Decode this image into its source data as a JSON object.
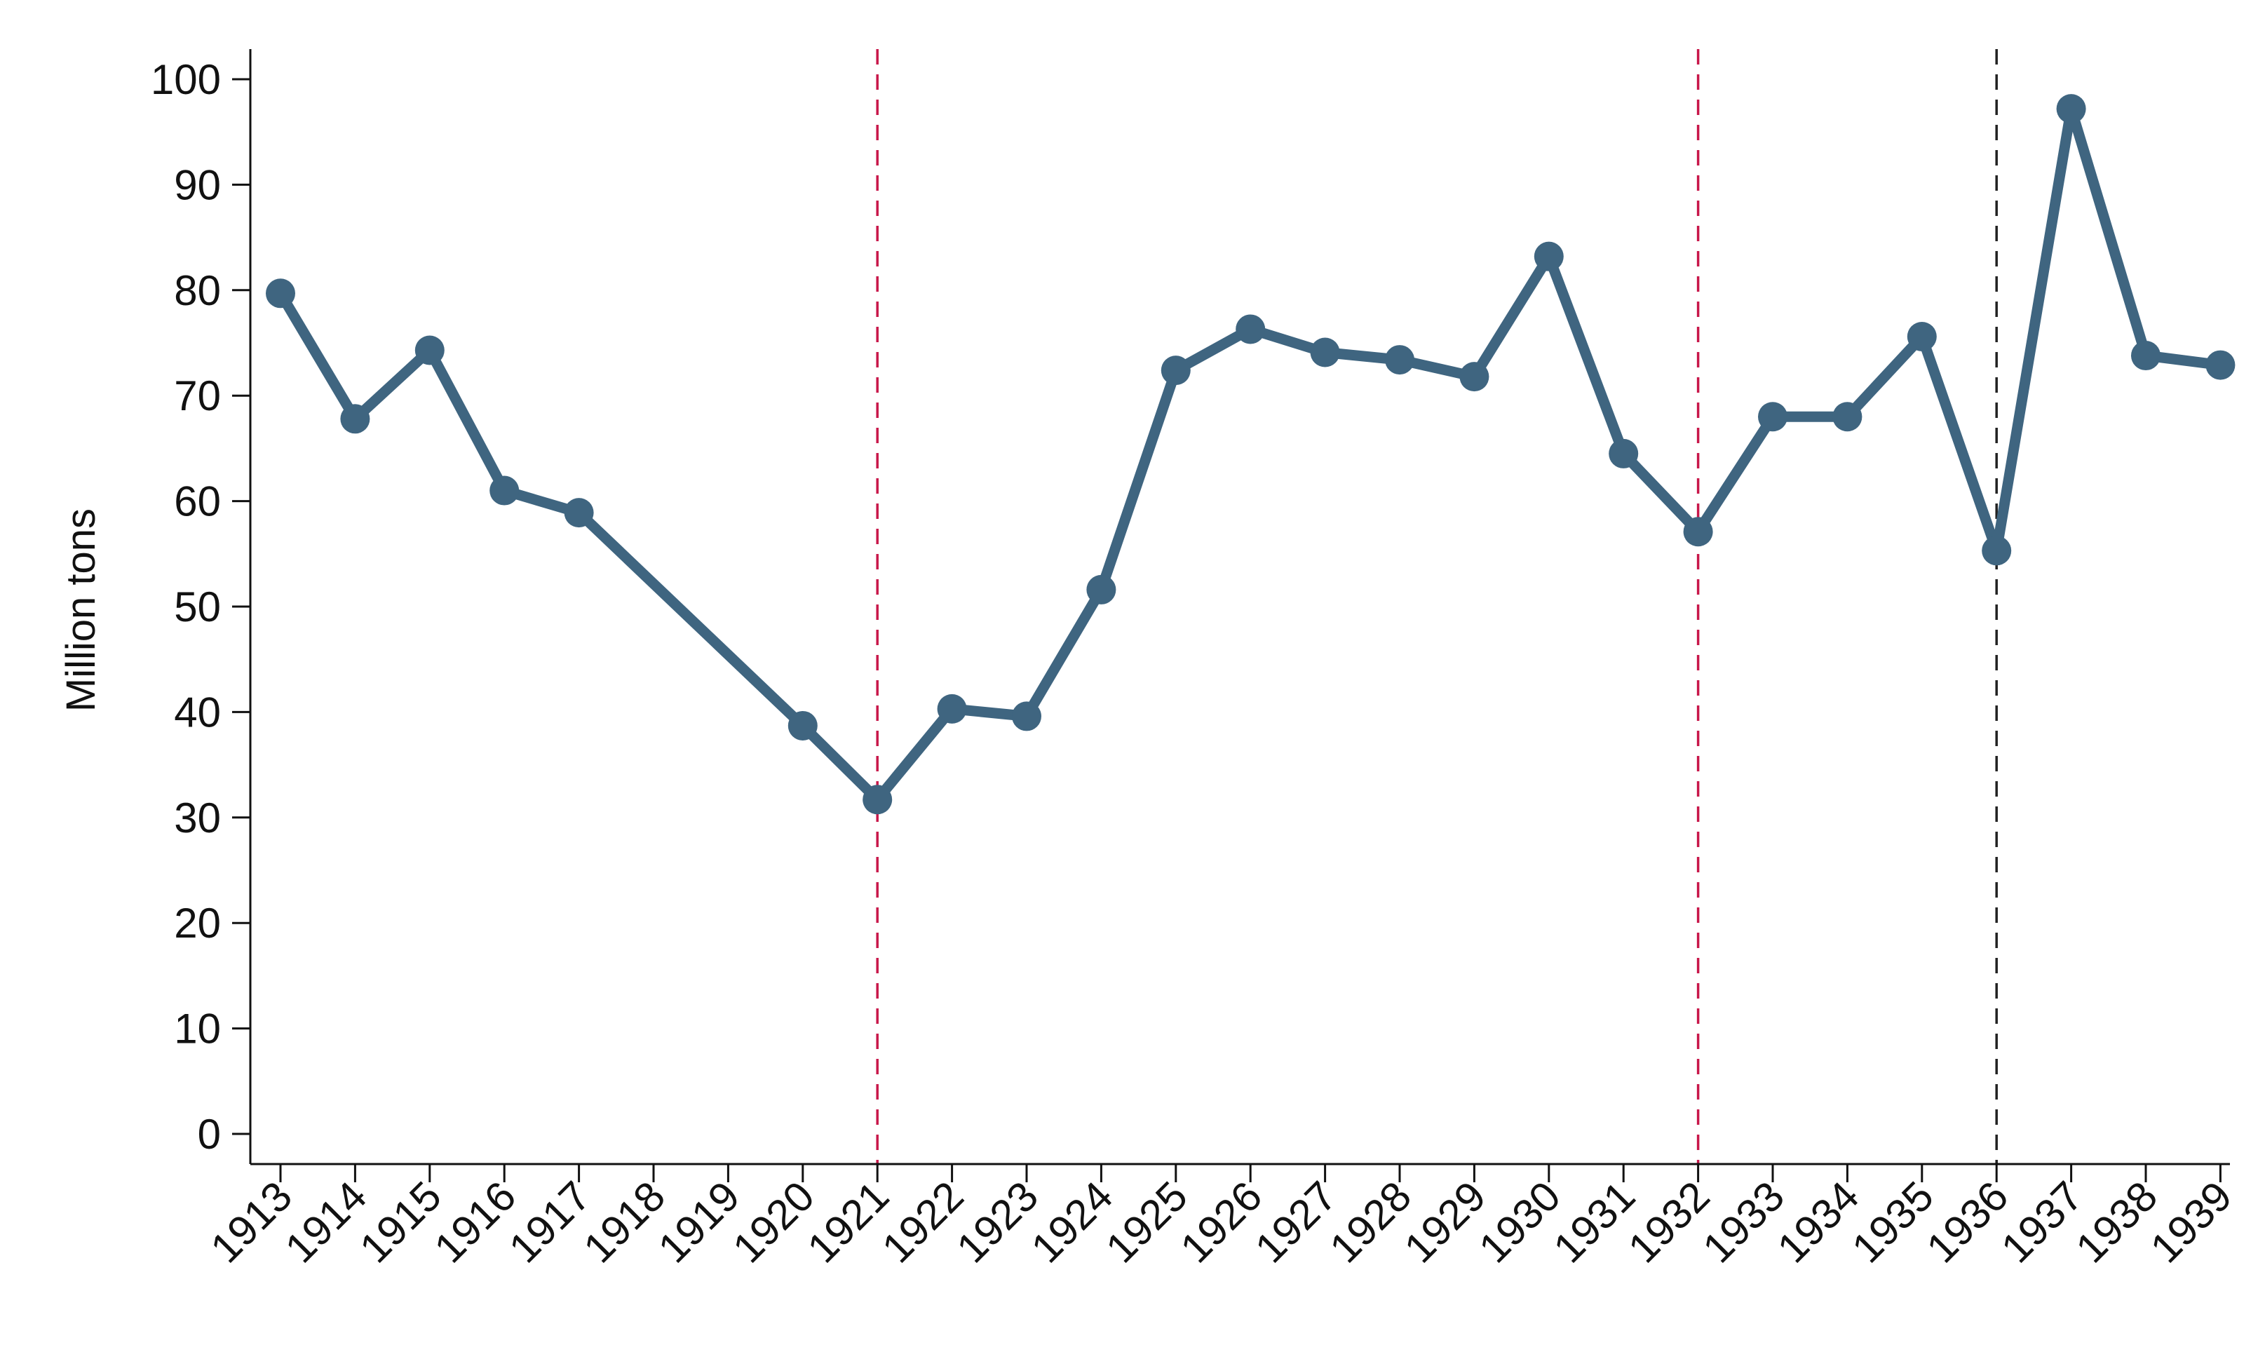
{
  "chart_data": {
    "type": "line",
    "title": "",
    "xlabel": "",
    "ylabel": "Million tons",
    "ylim": [
      0,
      100
    ],
    "yticks": [
      "0",
      "10",
      "20",
      "30",
      "40",
      "50",
      "60",
      "70",
      "80",
      "90",
      "100"
    ],
    "xticks": [
      "1913",
      "1914",
      "1915",
      "1916",
      "1917",
      "1918",
      "1919",
      "1920",
      "1921",
      "1922",
      "1923",
      "1924",
      "1925",
      "1926",
      "1927",
      "1928",
      "1929",
      "1930",
      "1931",
      "1932",
      "1933",
      "1934",
      "1935",
      "1936",
      "1937",
      "1938",
      "1939"
    ],
    "grid": false,
    "legend": "none",
    "series": [
      {
        "color": "#3f6580",
        "points": [
          {
            "x": 1913,
            "y": 79.7
          },
          {
            "x": 1914,
            "y": 67.8
          },
          {
            "x": 1915,
            "y": 74.3
          },
          {
            "x": 1916,
            "y": 61.0
          },
          {
            "x": 1917,
            "y": 58.9
          },
          {
            "x": 1920,
            "y": 38.7
          },
          {
            "x": 1921,
            "y": 31.7
          },
          {
            "x": 1922,
            "y": 40.3
          },
          {
            "x": 1923,
            "y": 39.6
          },
          {
            "x": 1924,
            "y": 51.6
          },
          {
            "x": 1925,
            "y": 72.4
          },
          {
            "x": 1926,
            "y": 76.3
          },
          {
            "x": 1927,
            "y": 74.1
          },
          {
            "x": 1928,
            "y": 73.4
          },
          {
            "x": 1929,
            "y": 71.8
          },
          {
            "x": 1930,
            "y": 83.2
          },
          {
            "x": 1931,
            "y": 64.5
          },
          {
            "x": 1932,
            "y": 57.1
          },
          {
            "x": 1933,
            "y": 68.0
          },
          {
            "x": 1934,
            "y": 68.0
          },
          {
            "x": 1935,
            "y": 75.6
          },
          {
            "x": 1936,
            "y": 55.3
          },
          {
            "x": 1937,
            "y": 97.2
          },
          {
            "x": 1938,
            "y": 73.8
          },
          {
            "x": 1939,
            "y": 72.9
          }
        ]
      }
    ],
    "reference_lines": [
      {
        "x": 1921,
        "color": "#c8174a",
        "style": "dashed"
      },
      {
        "x": 1932,
        "color": "#c8174a",
        "style": "dashed"
      },
      {
        "x": 1936,
        "color": "#222222",
        "style": "dashed"
      }
    ]
  }
}
